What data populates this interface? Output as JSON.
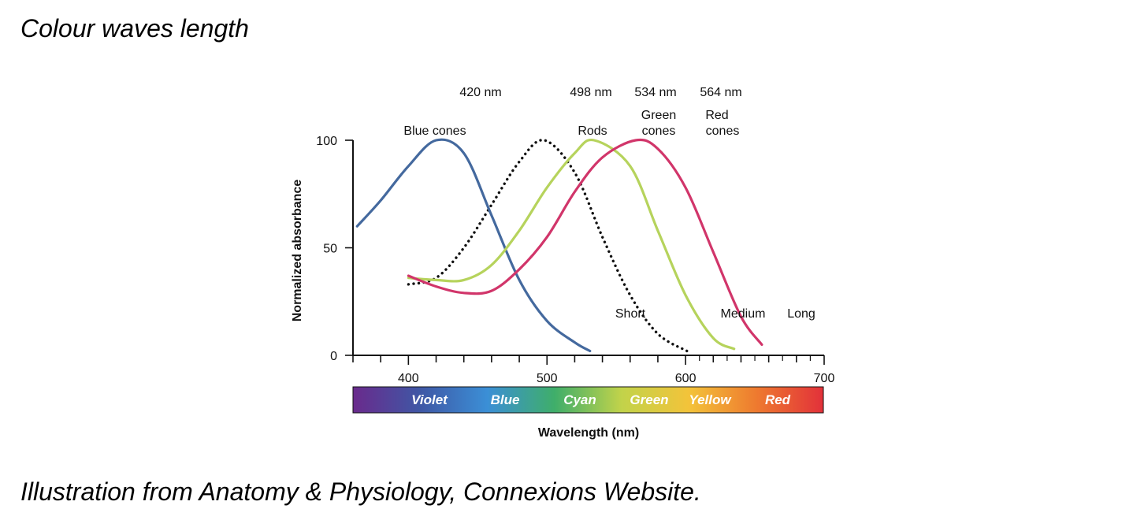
{
  "page": {
    "heading": "Colour waves length",
    "caption": "Illustration from Anatomy & Physiology, Connexions Website."
  },
  "chart_data": {
    "type": "line",
    "xlabel": "Wavelength (nm)",
    "ylabel": "Normalized absorbance",
    "xlim": [
      360,
      700
    ],
    "ylim": [
      0,
      100
    ],
    "x_ticks": [
      {
        "value": 400,
        "label": "400"
      },
      {
        "value": 500,
        "label": "500"
      },
      {
        "value": 600,
        "label": "600"
      },
      {
        "value": 700,
        "label": "700"
      }
    ],
    "y_ticks": [
      {
        "value": 0,
        "label": "0"
      },
      {
        "value": 50,
        "label": "50"
      },
      {
        "value": 100,
        "label": "100"
      }
    ],
    "series": [
      {
        "name": "Blue cones",
        "color": "#44699e",
        "dash": false,
        "peak_label": "420 nm",
        "end_label": "Short",
        "x": [
          363,
          380,
          400,
          420,
          440,
          460,
          480,
          500,
          520,
          531
        ],
        "y": [
          60,
          72,
          88,
          100,
          94,
          65,
          35,
          16,
          6,
          2
        ]
      },
      {
        "name": "Rods",
        "color": "#111111",
        "dash": true,
        "peak_label": "498 nm",
        "end_label": "Medium",
        "x": [
          400,
          420,
          440,
          460,
          480,
          498,
          520,
          540,
          560,
          580,
          601
        ],
        "y": [
          33,
          36,
          50,
          70,
          90,
          100,
          85,
          55,
          28,
          10,
          2
        ]
      },
      {
        "name": "Green cones",
        "color": "#b6d35c",
        "dash": false,
        "peak_label": "534 nm",
        "end_label": "Medium",
        "x": [
          400,
          420,
          440,
          460,
          480,
          500,
          520,
          534,
          560,
          580,
          600,
          620,
          635
        ],
        "y": [
          36,
          35,
          35,
          42,
          58,
          78,
          94,
          100,
          88,
          58,
          28,
          8,
          3
        ]
      },
      {
        "name": "Red cones",
        "color": "#d1356a",
        "dash": false,
        "peak_label": "564 nm",
        "end_label": "Long",
        "x": [
          400,
          420,
          440,
          460,
          480,
          500,
          520,
          540,
          564,
          580,
          600,
          620,
          640,
          655
        ],
        "y": [
          37,
          32,
          29,
          30,
          40,
          55,
          76,
          92,
          100,
          96,
          78,
          48,
          18,
          5
        ]
      }
    ],
    "series_labels": {
      "blue": "Blue cones",
      "rods": "Rods",
      "green_top": "Green",
      "green_bottom": "cones",
      "red_top": "Red",
      "red_bottom": "cones"
    },
    "spectrum": {
      "bands": [
        "Violet",
        "Blue",
        "Cyan",
        "Green",
        "Yellow",
        "Red"
      ],
      "colors": [
        "#6a2a8c",
        "#3f57a5",
        "#3b8fd6",
        "#3fae6a",
        "#c2d34a",
        "#f3c33a",
        "#ee7a2f",
        "#e2313a"
      ]
    }
  }
}
